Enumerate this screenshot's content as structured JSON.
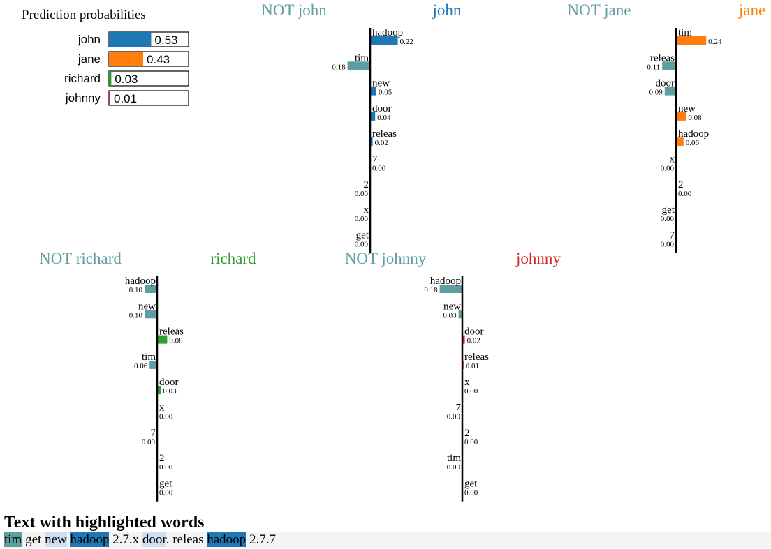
{
  "colors": {
    "not": "#5f9ea0",
    "john": "#1f77b4",
    "jane": "#ff7f0e",
    "richard": "#2ca02c",
    "johnny": "#d62728",
    "light_blue": "#cfdff0"
  },
  "probabilities": {
    "title": "Prediction probabilities",
    "items": [
      {
        "label": "john",
        "value": 0.53,
        "display": "0.53",
        "color": "#1f77b4"
      },
      {
        "label": "jane",
        "value": 0.43,
        "display": "0.43",
        "color": "#ff7f0e"
      },
      {
        "label": "richard",
        "value": 0.03,
        "display": "0.03",
        "color": "#2ca02c"
      },
      {
        "label": "johnny",
        "value": 0.01,
        "display": "0.01",
        "color": "#d62728"
      }
    ]
  },
  "chart_data": [
    {
      "type": "bar",
      "class": "john",
      "not_label": "NOT john",
      "label": "john",
      "color": "#1f77b4",
      "features": [
        {
          "word": "hadoop",
          "value": 0.22,
          "display": "0.22"
        },
        {
          "word": "tim",
          "value": -0.18,
          "display": "0.18"
        },
        {
          "word": "new",
          "value": 0.05,
          "display": "0.05"
        },
        {
          "word": "door",
          "value": 0.04,
          "display": "0.04"
        },
        {
          "word": "releas",
          "value": 0.02,
          "display": "0.02"
        },
        {
          "word": "7",
          "value": 0.0,
          "display": "0.00"
        },
        {
          "word": "2",
          "value": -0.0,
          "display": "0.00"
        },
        {
          "word": "x",
          "value": -0.0,
          "display": "0.00"
        },
        {
          "word": "get",
          "value": -0.0,
          "display": "0.00"
        }
      ]
    },
    {
      "type": "bar",
      "class": "jane",
      "not_label": "NOT jane",
      "label": "jane",
      "color": "#ff7f0e",
      "features": [
        {
          "word": "tim",
          "value": 0.24,
          "display": "0.24"
        },
        {
          "word": "releas",
          "value": -0.11,
          "display": "0.11"
        },
        {
          "word": "door",
          "value": -0.09,
          "display": "0.09"
        },
        {
          "word": "new",
          "value": 0.08,
          "display": "0.08"
        },
        {
          "word": "hadoop",
          "value": 0.06,
          "display": "0.06"
        },
        {
          "word": "x",
          "value": -0.0,
          "display": "0.00"
        },
        {
          "word": "2",
          "value": 0.0,
          "display": "0.00"
        },
        {
          "word": "get",
          "value": -0.0,
          "display": "0.00"
        },
        {
          "word": "7",
          "value": -0.0,
          "display": "0.00"
        }
      ]
    },
    {
      "type": "bar",
      "class": "richard",
      "not_label": "NOT richard",
      "label": "richard",
      "color": "#2ca02c",
      "features": [
        {
          "word": "hadoop",
          "value": -0.1,
          "display": "0.10"
        },
        {
          "word": "new",
          "value": -0.1,
          "display": "0.10"
        },
        {
          "word": "releas",
          "value": 0.08,
          "display": "0.08"
        },
        {
          "word": "tim",
          "value": -0.06,
          "display": "0.06"
        },
        {
          "word": "door",
          "value": 0.03,
          "display": "0.03"
        },
        {
          "word": "x",
          "value": 0.0,
          "display": "0.00"
        },
        {
          "word": "7",
          "value": -0.0,
          "display": "0.00"
        },
        {
          "word": "2",
          "value": 0.0,
          "display": "0.00"
        },
        {
          "word": "get",
          "value": 0.0,
          "display": "0.00"
        }
      ]
    },
    {
      "type": "bar",
      "class": "johnny",
      "not_label": "NOT johnny",
      "label": "johnny",
      "color": "#d62728",
      "features": [
        {
          "word": "hadoop",
          "value": -0.18,
          "display": "0.18"
        },
        {
          "word": "new",
          "value": -0.03,
          "display": "0.03"
        },
        {
          "word": "door",
          "value": 0.02,
          "display": "0.02"
        },
        {
          "word": "releas",
          "value": 0.01,
          "display": "0.01"
        },
        {
          "word": "x",
          "value": 0.0,
          "display": "0.00"
        },
        {
          "word": "7",
          "value": -0.0,
          "display": "0.00"
        },
        {
          "word": "2",
          "value": 0.0,
          "display": "0.00"
        },
        {
          "word": "tim",
          "value": -0.0,
          "display": "0.00"
        },
        {
          "word": "get",
          "value": 0.0,
          "display": "0.00"
        }
      ]
    }
  ],
  "highlighted_text": {
    "title": "Text with highlighted words",
    "tokens": [
      {
        "text": "tim",
        "bg": "#5f9ea0"
      },
      {
        "text": " get ",
        "bg": ""
      },
      {
        "text": "new",
        "bg": "#cfdff0"
      },
      {
        "text": " ",
        "bg": ""
      },
      {
        "text": "hadoop",
        "bg": "#1f77b4"
      },
      {
        "text": " 2.7.x ",
        "bg": ""
      },
      {
        "text": "door",
        "bg": "#cfdff0"
      },
      {
        "text": ". releas ",
        "bg": ""
      },
      {
        "text": "hadoop",
        "bg": "#1f77b4"
      },
      {
        "text": " 2.7.7",
        "bg": ""
      }
    ]
  }
}
